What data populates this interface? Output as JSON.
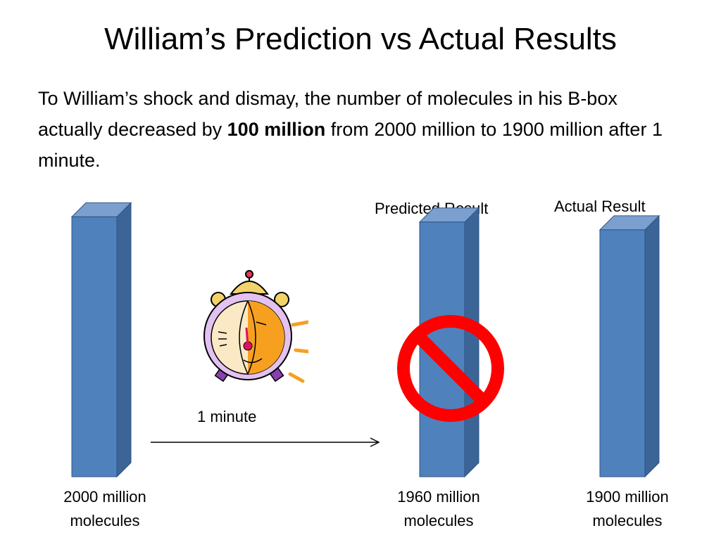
{
  "title": "William’s Prediction vs Actual Results",
  "paragraph": {
    "before": "To William’s shock and dismay, the number of molecules in his B-box actually decreased by ",
    "bold": "100 million",
    "after": " from 2000 million to 1900 million after 1 minute."
  },
  "headers": {
    "predicted": "Predicted Result",
    "actual": "Actual Result"
  },
  "time_label": "1 minute",
  "colors": {
    "bar_front": "#4f81bd",
    "bar_side": "#3c6597",
    "bar_top": "#7ba0cf",
    "prohibit": "#ff0000"
  },
  "icons": {
    "clock": "alarm-clock-icon",
    "prohibit": "prohibition-sign-icon",
    "arrow": "right-arrow"
  },
  "chart_data": {
    "type": "bar",
    "style": "3d-column",
    "values": [
      2000,
      1960,
      1900
    ],
    "labels": [
      [
        "2000 million",
        "molecules"
      ],
      [
        "1960 million",
        "molecules"
      ],
      [
        "1900 million",
        "molecules"
      ]
    ],
    "crossed_out": [
      false,
      true,
      false
    ]
  }
}
